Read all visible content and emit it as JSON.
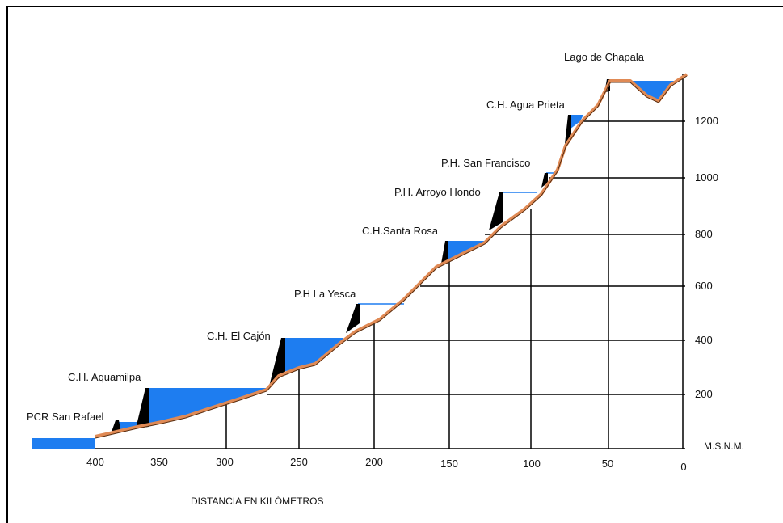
{
  "labels": [
    "PCR San Rafael",
    "C.H. Aquamilpa",
    "C.H. El Cajón",
    "P.H La Yesca",
    "C.H.Santa Rosa",
    "P.H. Arroyo Hondo",
    "P.H. San Francisco",
    "C.H. Agua Prieta",
    "Lago de Chapala"
  ],
  "x_axis": {
    "title": "DISTANCIA EN KILÓMETROS",
    "ticks": [
      "400",
      "350",
      "300",
      "250",
      "200",
      "150",
      "100",
      "50",
      "0"
    ]
  },
  "y_axis": {
    "unit": "M.S.N.M.",
    "ticks": [
      "200",
      "400",
      "600",
      "800",
      "1000",
      "1200"
    ]
  }
}
